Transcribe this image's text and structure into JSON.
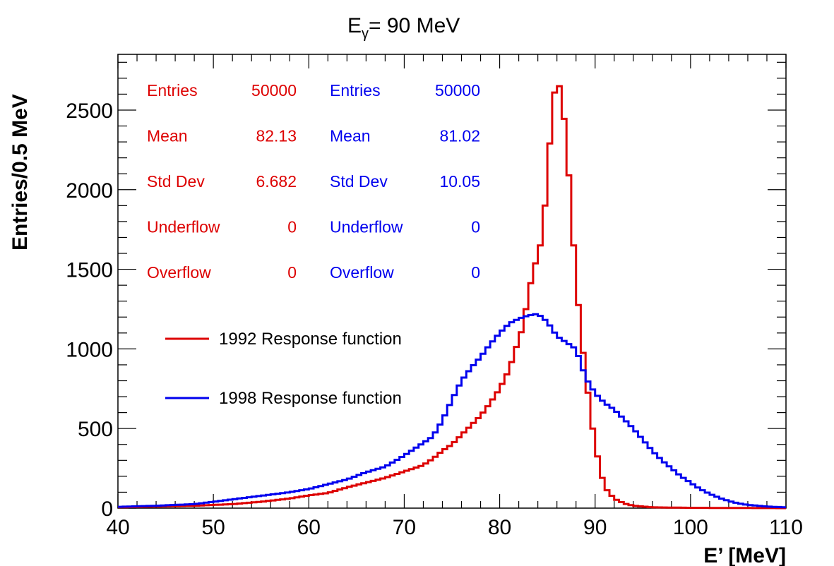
{
  "title": {
    "main": "E",
    "sub": "γ",
    "rest": "= 90 MeV"
  },
  "colors": {
    "red": "#dd0000",
    "blue": "#0000ee"
  },
  "chart_data": {
    "type": "line",
    "style": "step-histogram",
    "xlabel": "E’ [MeV]",
    "ylabel": "Entries/0.5 MeV",
    "xlim": [
      40,
      110
    ],
    "ylim": [
      0,
      2850
    ],
    "x_ticks": [
      40,
      50,
      60,
      70,
      80,
      90,
      100,
      110
    ],
    "y_ticks": [
      0,
      500,
      1000,
      1500,
      2000,
      2500
    ],
    "bin_width": 0.5,
    "legend_position": "middle-left",
    "grid": false,
    "stats": [
      {
        "color": "red",
        "rows": [
          {
            "label": "Entries",
            "value": "50000"
          },
          {
            "label": "Mean",
            "value": "82.13"
          },
          {
            "label": "Std Dev",
            "value": "6.682"
          },
          {
            "label": "Underflow",
            "value": "0"
          },
          {
            "label": "Overflow",
            "value": "0"
          }
        ]
      },
      {
        "color": "blue",
        "rows": [
          {
            "label": "Entries",
            "value": "50000"
          },
          {
            "label": "Mean",
            "value": "81.02"
          },
          {
            "label": "Std Dev",
            "value": "10.05"
          },
          {
            "label": "Underflow",
            "value": "0"
          },
          {
            "label": "Overflow",
            "value": "0"
          }
        ]
      }
    ],
    "series": [
      {
        "name": "1992 Response function",
        "color": "#dd0000",
        "points": [
          [
            40,
            5
          ],
          [
            44,
            10
          ],
          [
            48,
            15
          ],
          [
            52,
            25
          ],
          [
            55,
            40
          ],
          [
            58,
            60
          ],
          [
            60,
            80
          ],
          [
            62,
            95
          ],
          [
            64,
            130
          ],
          [
            66,
            160
          ],
          [
            68,
            190
          ],
          [
            70,
            230
          ],
          [
            72,
            270
          ],
          [
            73,
            310
          ],
          [
            74,
            360
          ],
          [
            75,
            400
          ],
          [
            76,
            460
          ],
          [
            77,
            520
          ],
          [
            78,
            580
          ],
          [
            79,
            660
          ],
          [
            80,
            750
          ],
          [
            81,
            870
          ],
          [
            82,
            1060
          ],
          [
            82.5,
            1150
          ],
          [
            83,
            1350
          ],
          [
            84,
            1600
          ],
          [
            84.5,
            1700
          ],
          [
            85,
            2100
          ],
          [
            85.5,
            2480
          ],
          [
            86,
            2740
          ],
          [
            86.5,
            2560
          ],
          [
            87,
            2330
          ],
          [
            87.5,
            1850
          ],
          [
            88,
            1450
          ],
          [
            88.5,
            1100
          ],
          [
            89,
            850
          ],
          [
            89.5,
            600
          ],
          [
            90,
            400
          ],
          [
            90.5,
            250
          ],
          [
            91,
            130
          ],
          [
            92,
            60
          ],
          [
            93,
            30
          ],
          [
            94,
            15
          ],
          [
            96,
            5
          ],
          [
            100,
            2
          ],
          [
            105,
            1
          ],
          [
            110,
            0
          ]
        ]
      },
      {
        "name": "1998 Response function",
        "color": "#0000ee",
        "points": [
          [
            40,
            8
          ],
          [
            44,
            15
          ],
          [
            48,
            25
          ],
          [
            50,
            40
          ],
          [
            52,
            55
          ],
          [
            54,
            70
          ],
          [
            56,
            85
          ],
          [
            58,
            100
          ],
          [
            60,
            120
          ],
          [
            62,
            150
          ],
          [
            64,
            180
          ],
          [
            66,
            225
          ],
          [
            68,
            260
          ],
          [
            70,
            330
          ],
          [
            72,
            410
          ],
          [
            73,
            450
          ],
          [
            74,
            550
          ],
          [
            75,
            680
          ],
          [
            76,
            800
          ],
          [
            77,
            880
          ],
          [
            78,
            950
          ],
          [
            79,
            1030
          ],
          [
            80,
            1100
          ],
          [
            81,
            1160
          ],
          [
            82,
            1190
          ],
          [
            83,
            1210
          ],
          [
            84,
            1220
          ],
          [
            85,
            1170
          ],
          [
            86,
            1080
          ],
          [
            87,
            1040
          ],
          [
            88,
            1000
          ],
          [
            89,
            820
          ],
          [
            90,
            720
          ],
          [
            91,
            660
          ],
          [
            92,
            620
          ],
          [
            93,
            560
          ],
          [
            94,
            500
          ],
          [
            95,
            430
          ],
          [
            96,
            360
          ],
          [
            97,
            300
          ],
          [
            98,
            250
          ],
          [
            99,
            200
          ],
          [
            100,
            160
          ],
          [
            101,
            120
          ],
          [
            102,
            90
          ],
          [
            103,
            65
          ],
          [
            104,
            45
          ],
          [
            105,
            30
          ],
          [
            106,
            20
          ],
          [
            108,
            10
          ],
          [
            110,
            5
          ]
        ]
      }
    ]
  }
}
